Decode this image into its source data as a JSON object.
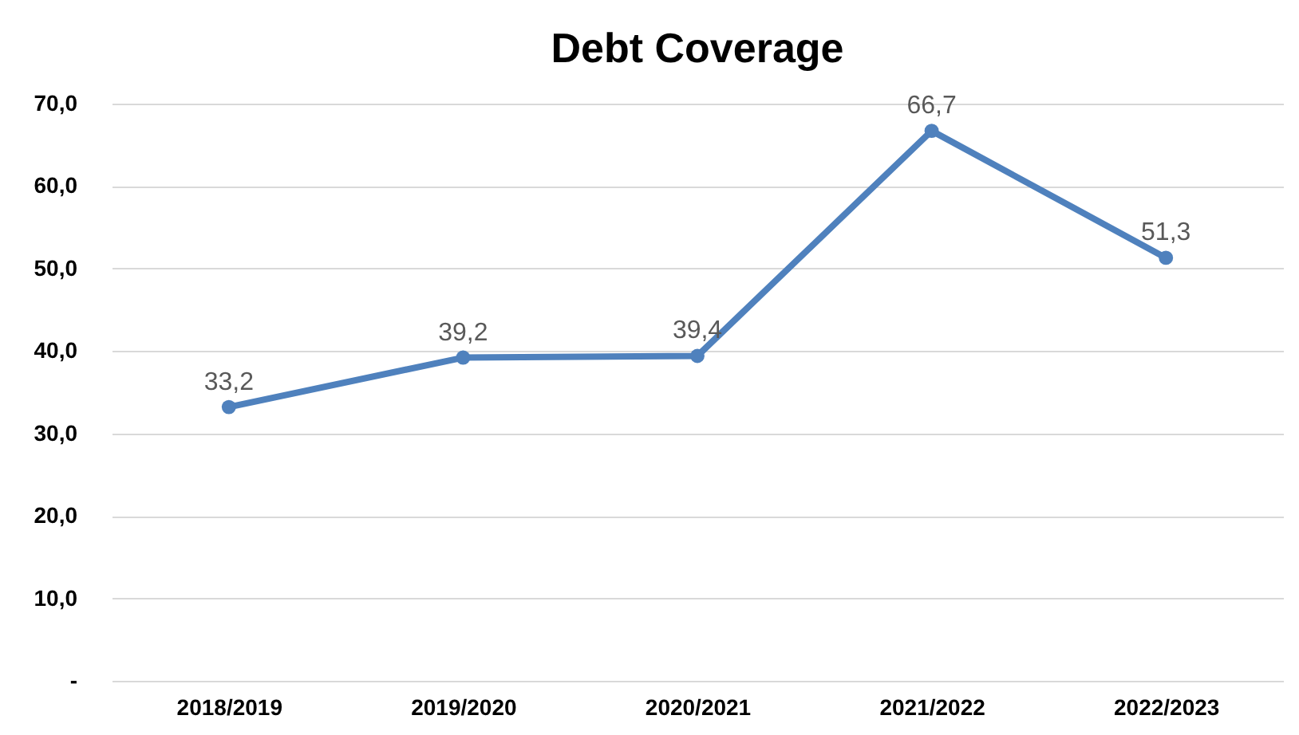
{
  "chart_data": {
    "type": "line",
    "title": "Debt Coverage",
    "categories": [
      "2018/2019",
      "2019/2020",
      "2020/2021",
      "2021/2022",
      "2022/2023"
    ],
    "series": [
      {
        "color": "#4f81bd",
        "values": [
          33.2,
          39.2,
          39.4,
          66.7,
          51.3
        ],
        "value_labels": [
          "33,2",
          "39,2",
          "39,4",
          "66,7",
          "51,3"
        ]
      }
    ],
    "ylim": [
      0,
      70
    ],
    "yticks": [
      {
        "value": 0,
        "label": "-"
      },
      {
        "value": 10,
        "label": "10,0"
      },
      {
        "value": 20,
        "label": "20,0"
      },
      {
        "value": 30,
        "label": "30,0"
      },
      {
        "value": 40,
        "label": "40,0"
      },
      {
        "value": 50,
        "label": "50,0"
      },
      {
        "value": 60,
        "label": "60,0"
      },
      {
        "value": 70,
        "label": "70,0"
      }
    ],
    "grid": "y",
    "marker": "circle",
    "line_style": "solid"
  }
}
